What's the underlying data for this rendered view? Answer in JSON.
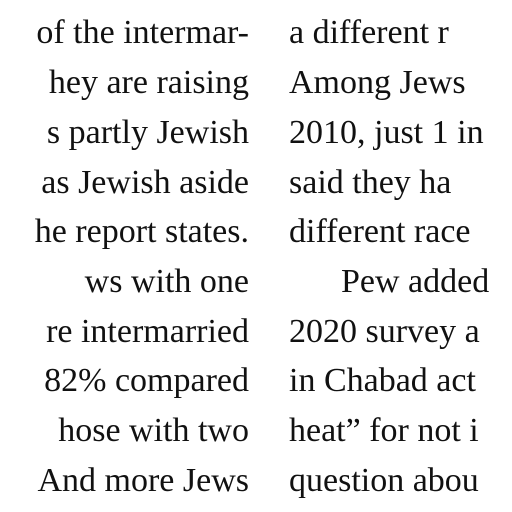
{
  "left_column": {
    "lines": [
      "of the intermar-",
      "hey are raising",
      "s partly Jewish",
      "as Jewish aside",
      "he report states.",
      "ws with one",
      "re intermarried",
      "82% compared",
      "hose with two",
      "And more Jews"
    ]
  },
  "right_column": {
    "lines": [
      "a different r",
      "Among Jews",
      "2010, just 1 in",
      "said they ha",
      "different race",
      "Pew added",
      "2020 survey a",
      "in Chabad act",
      "heat” for not i",
      "question abou"
    ]
  }
}
